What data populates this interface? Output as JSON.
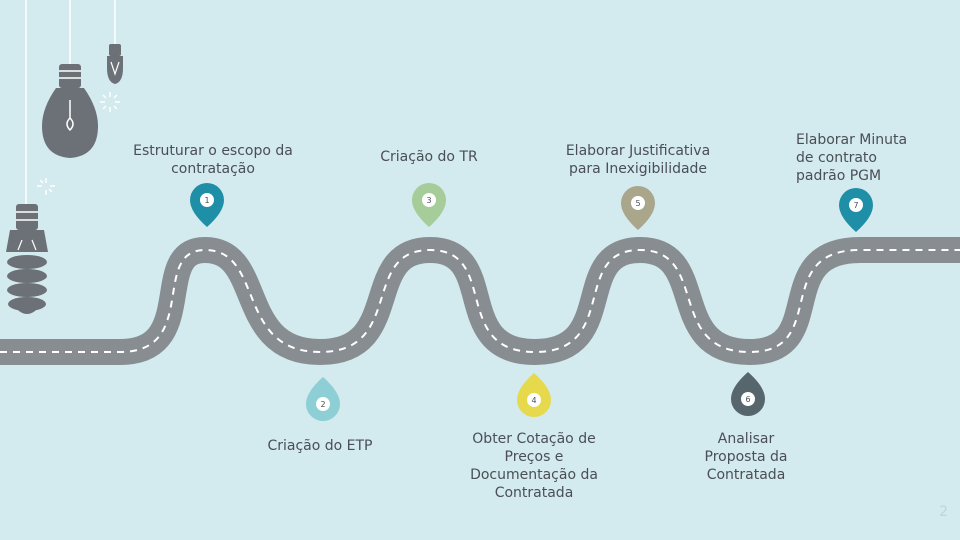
{
  "steps": [
    {
      "number": "1",
      "label": "Estruturar o escopo da\ncontratação",
      "color": "#1e8fa6"
    },
    {
      "number": "2",
      "label": "Criação do ETP",
      "color": "#8dcfd4"
    },
    {
      "number": "3",
      "label": "Criação do TR",
      "color": "#a6cc99"
    },
    {
      "number": "4",
      "label": "Obter Cotação de\nPreços e\nDocumentação da\nContratada",
      "color": "#e6d94c"
    },
    {
      "number": "5",
      "label": "Elaborar Justificativa\npara Inexigibilidade",
      "color": "#a9a68c"
    },
    {
      "number": "6",
      "label": "Analisar\nProposta da\nContratada",
      "color": "#56666c"
    },
    {
      "number": "7",
      "label": "Elaborar Minuta\nde contrato\npadrão PGM",
      "color": "#1e8fa6"
    }
  ],
  "page_number": "2",
  "colors": {
    "background": "#d3eaee",
    "road": "#878d91",
    "road_marking": "#ffffff",
    "bulb": "#6b7177",
    "text": "#4a4f55"
  }
}
